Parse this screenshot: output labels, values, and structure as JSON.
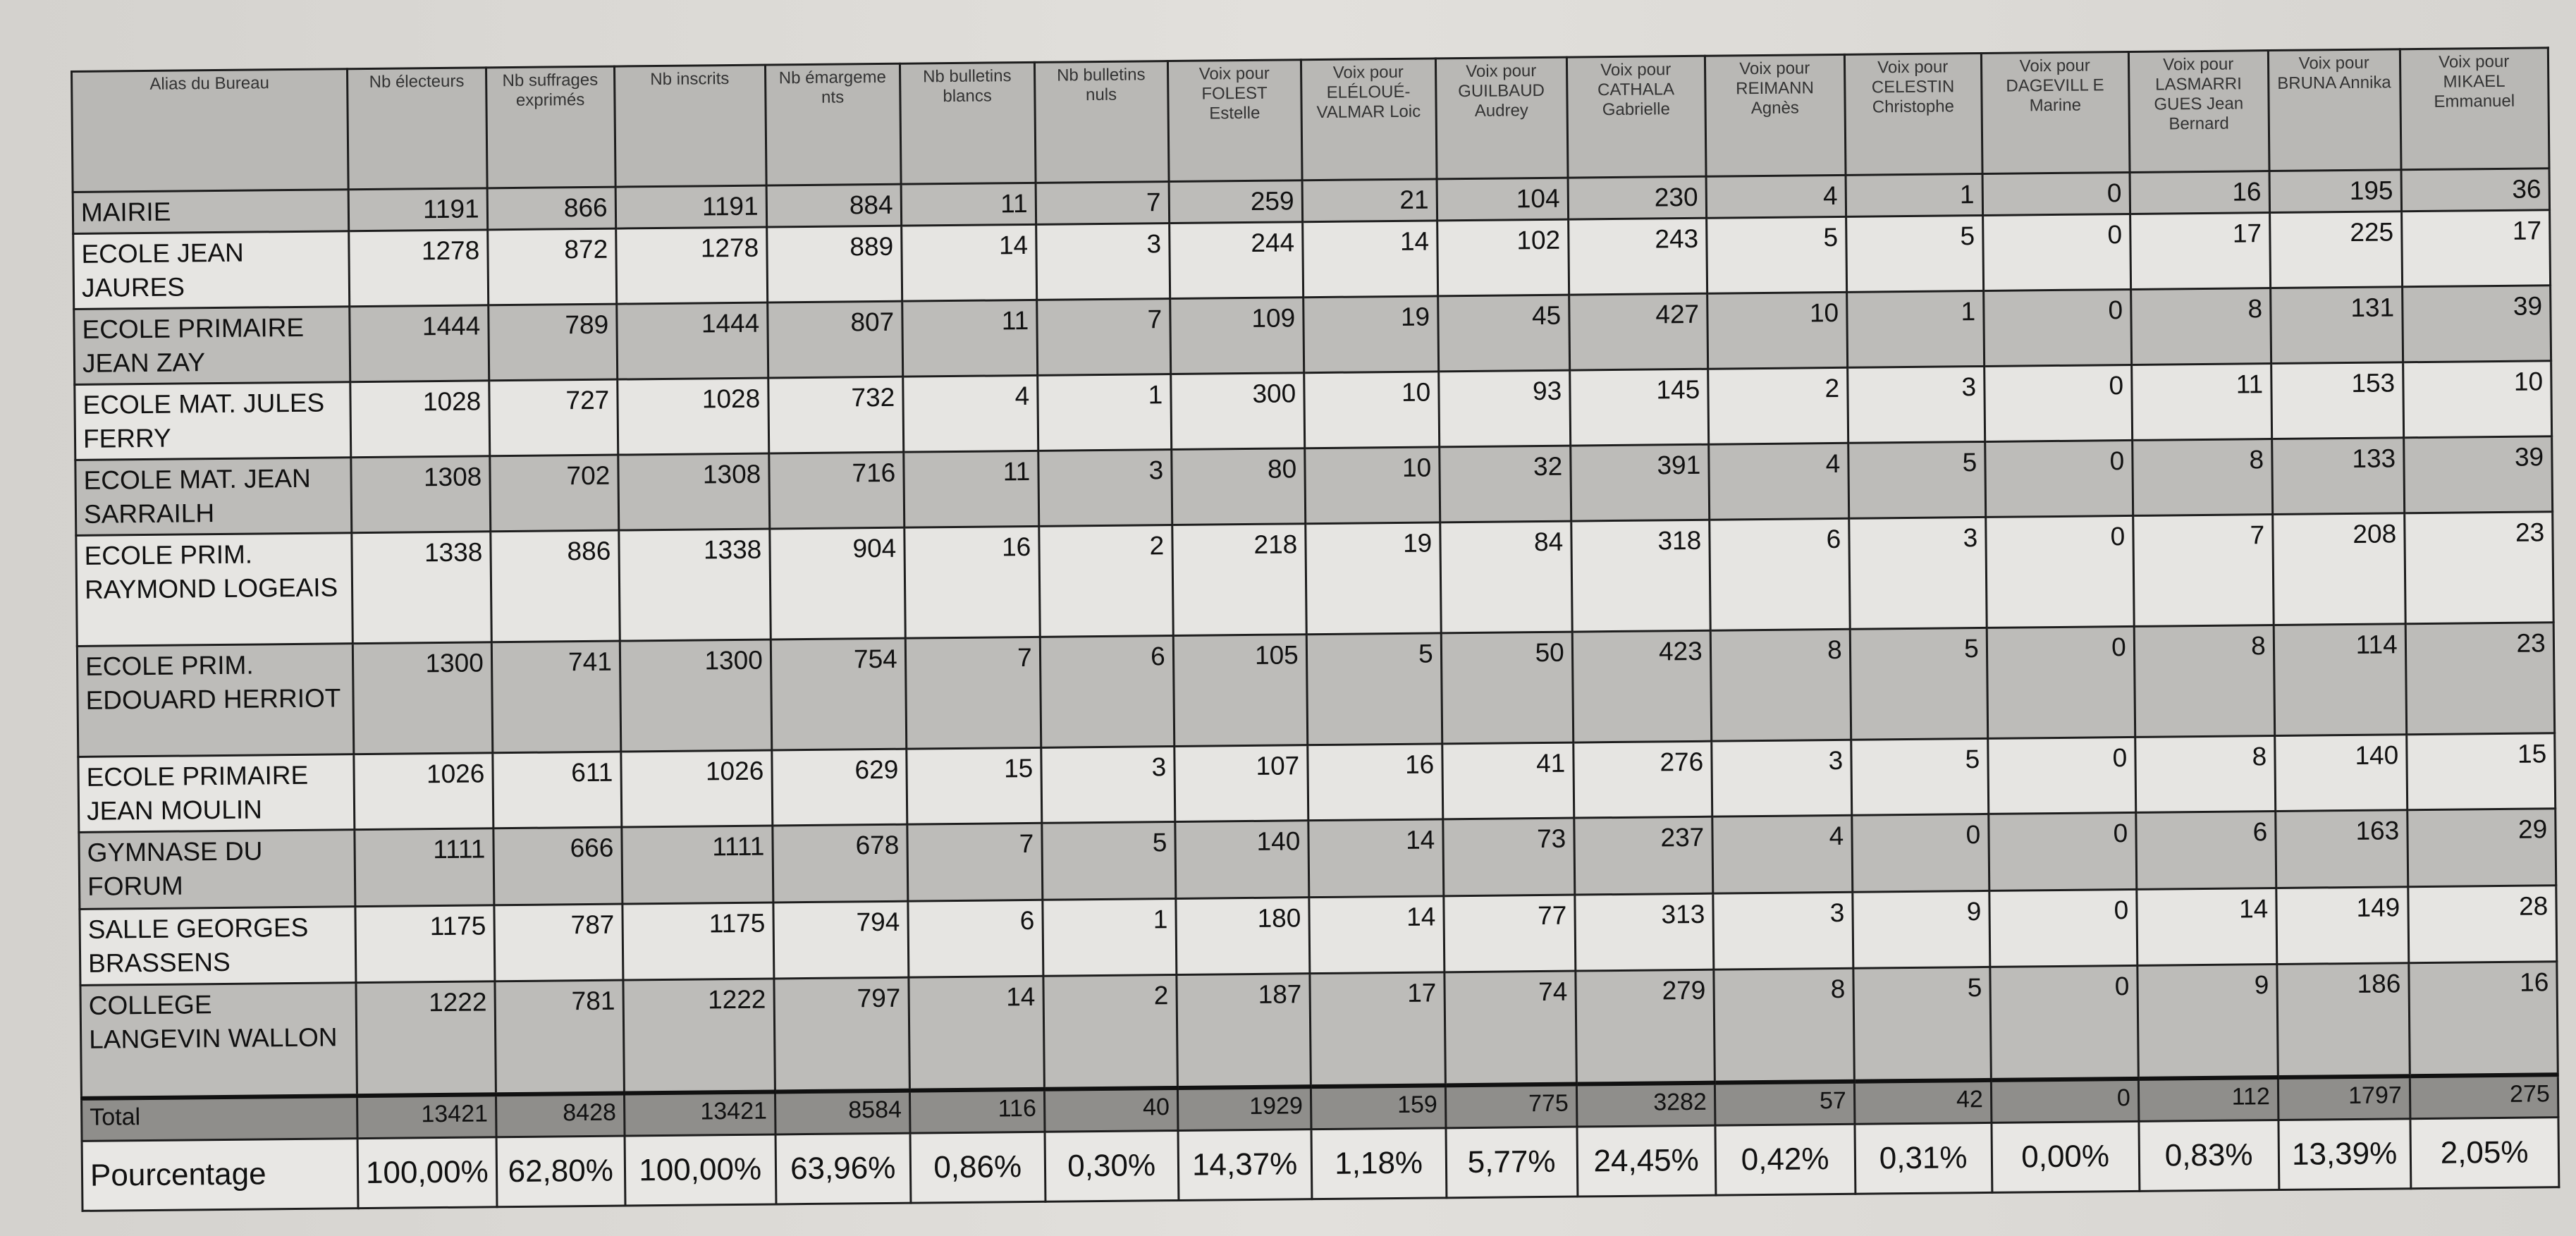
{
  "headers": [
    "Alias du Bureau",
    "Nb électeurs",
    "Nb suffrages exprimés",
    "Nb inscrits",
    "Nb émargeme nts",
    "Nb bulletins blancs",
    "Nb bulletins nuls",
    "Voix pour FOLEST Estelle",
    "Voix pour ELÉLOUÉ-VALMAR Loic",
    "Voix pour GUILBAUD Audrey",
    "Voix pour CATHALA Gabrielle",
    "Voix pour REIMANN Agnès",
    "Voix pour CELESTIN Christophe",
    "Voix pour DAGEVILL E Marine",
    "Voix pour LASMARRI GUES Jean Bernard",
    "Voix pour BRUNA Annika",
    "Voix pour MIKAEL Emmanuel"
  ],
  "rows": [
    {
      "name": "MAIRIE",
      "values": [
        "1191",
        "866",
        "1191",
        "884",
        "11",
        "7",
        "259",
        "21",
        "104",
        "230",
        "4",
        "1",
        "0",
        "16",
        "195",
        "36"
      ]
    },
    {
      "name": "ECOLE JEAN JAURES",
      "values": [
        "1278",
        "872",
        "1278",
        "889",
        "14",
        "3",
        "244",
        "14",
        "102",
        "243",
        "5",
        "5",
        "0",
        "17",
        "225",
        "17"
      ]
    },
    {
      "name": "ECOLE PRIMAIRE JEAN ZAY",
      "values": [
        "1444",
        "789",
        "1444",
        "807",
        "11",
        "7",
        "109",
        "19",
        "45",
        "427",
        "10",
        "1",
        "0",
        "8",
        "131",
        "39"
      ]
    },
    {
      "name": "ECOLE MAT. JULES FERRY",
      "values": [
        "1028",
        "727",
        "1028",
        "732",
        "4",
        "1",
        "300",
        "10",
        "93",
        "145",
        "2",
        "3",
        "0",
        "11",
        "153",
        "10"
      ]
    },
    {
      "name": "ECOLE MAT. JEAN SARRAILH",
      "values": [
        "1308",
        "702",
        "1308",
        "716",
        "11",
        "3",
        "80",
        "10",
        "32",
        "391",
        "4",
        "5",
        "0",
        "8",
        "133",
        "39"
      ]
    },
    {
      "name": "ECOLE PRIM. RAYMOND LOGEAIS",
      "values": [
        "1338",
        "886",
        "1338",
        "904",
        "16",
        "2",
        "218",
        "19",
        "84",
        "318",
        "6",
        "3",
        "0",
        "7",
        "208",
        "23"
      ]
    },
    {
      "name": "ECOLE PRIM. EDOUARD HERRIOT",
      "values": [
        "1300",
        "741",
        "1300",
        "754",
        "7",
        "6",
        "105",
        "5",
        "50",
        "423",
        "8",
        "5",
        "0",
        "8",
        "114",
        "23"
      ]
    },
    {
      "name": "ECOLE PRIMAIRE JEAN MOULIN",
      "values": [
        "1026",
        "611",
        "1026",
        "629",
        "15",
        "3",
        "107",
        "16",
        "41",
        "276",
        "3",
        "5",
        "0",
        "8",
        "140",
        "15"
      ]
    },
    {
      "name": "GYMNASE DU FORUM",
      "values": [
        "1111",
        "666",
        "1111",
        "678",
        "7",
        "5",
        "140",
        "14",
        "73",
        "237",
        "4",
        "0",
        "0",
        "6",
        "163",
        "29"
      ]
    },
    {
      "name": "SALLE GEORGES BRASSENS",
      "values": [
        "1175",
        "787",
        "1175",
        "794",
        "6",
        "1",
        "180",
        "14",
        "77",
        "313",
        "3",
        "9",
        "0",
        "14",
        "149",
        "28"
      ]
    },
    {
      "name": "COLLEGE LANGEVIN WALLON",
      "values": [
        "1222",
        "781",
        "1222",
        "797",
        "14",
        "2",
        "187",
        "17",
        "74",
        "279",
        "8",
        "5",
        "0",
        "9",
        "186",
        "16"
      ]
    }
  ],
  "total": {
    "name": "Total",
    "values": [
      "13421",
      "8428",
      "13421",
      "8584",
      "116",
      "40",
      "1929",
      "159",
      "775",
      "3282",
      "57",
      "42",
      "0",
      "112",
      "1797",
      "275"
    ]
  },
  "pourcentage": {
    "name": "Pourcentage",
    "values": [
      "100,00%",
      "62,80%",
      "100,00%",
      "63,96%",
      "0,86%",
      "0,30%",
      "14,37%",
      "1,18%",
      "5,77%",
      "24,45%",
      "0,42%",
      "0,31%",
      "0,00%",
      "0,83%",
      "13,39%",
      "2,05%"
    ]
  }
}
